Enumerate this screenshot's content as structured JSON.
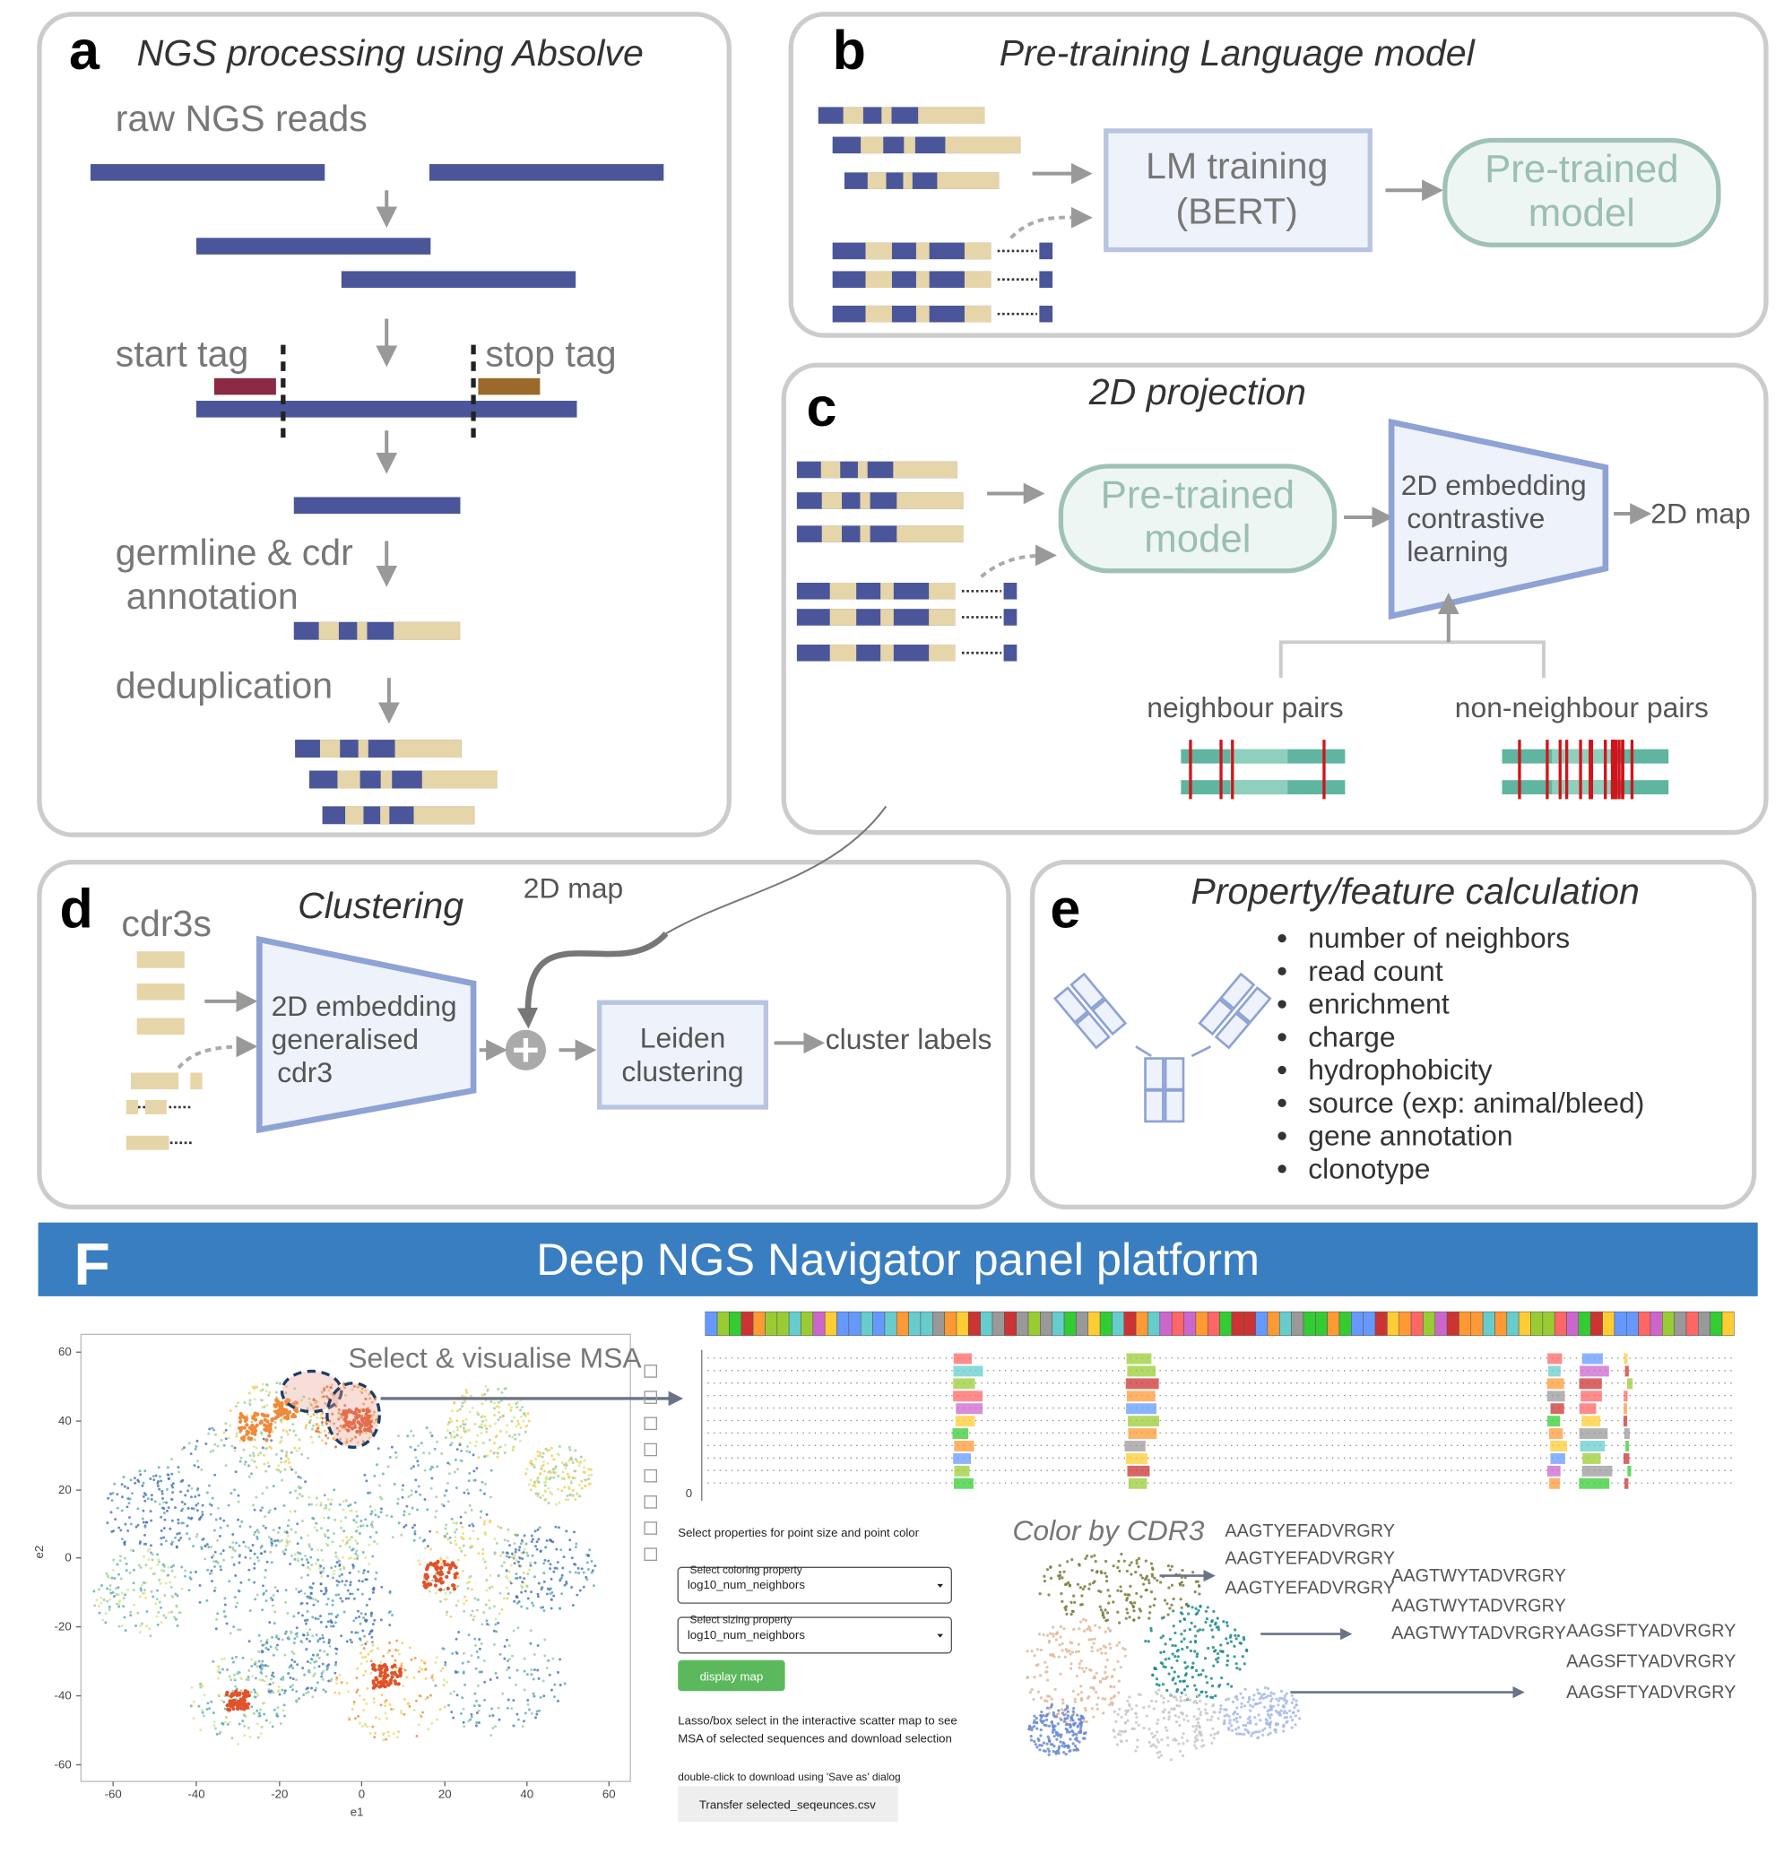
{
  "panel_a": {
    "letter": "a",
    "title": "NGS processing using Absolve",
    "raw_reads": "raw NGS reads",
    "start_tag": "start tag",
    "stop_tag": "stop tag",
    "annotation": [
      "germline & cdr",
      "annotation"
    ],
    "dedup": "deduplication"
  },
  "panel_b": {
    "letter": "b",
    "title": "Pre-training Language model",
    "box1": [
      "LM training",
      "(BERT)"
    ],
    "box2": [
      "Pre-trained",
      "model"
    ]
  },
  "panel_c": {
    "letter": "c",
    "title": "2D projection",
    "box1": [
      "Pre-trained",
      "model"
    ],
    "box2": [
      "2D embedding",
      "contrastive",
      "learning"
    ],
    "output": "2D map",
    "pairs": [
      "neighbour pairs",
      "non-neighbour pairs"
    ]
  },
  "panel_d": {
    "letter": "d",
    "title": "Clustering",
    "input": "cdr3s",
    "box1": [
      "2D embedding",
      "generalised",
      "cdr3"
    ],
    "map_label": "2D map",
    "box2": [
      "Leiden",
      "clustering"
    ],
    "output": "cluster labels"
  },
  "panel_e": {
    "letter": "e",
    "title": "Property/feature calculation",
    "items": [
      "number of neighbors",
      "read count",
      "enrichment",
      "charge",
      "hydrophobicity",
      "source (exp: animal/bleed)",
      "gene annotation",
      "clonotype"
    ]
  },
  "panel_f": {
    "letter": "F",
    "title": "Deep NGS Navigator panel platform",
    "scatter": {
      "annotation": "Select & visualise MSA",
      "xlabel": "e1",
      "ylabel": "e2",
      "xticks": [
        "-60",
        "-40",
        "-20",
        "0",
        "20",
        "40",
        "60"
      ],
      "yticks": [
        "60",
        "40",
        "20",
        "0",
        "-20",
        "-40",
        "-60"
      ]
    },
    "msa_zero": "0",
    "controls": {
      "heading": "Select properties for point size and point color",
      "coloring_label": "Select coloring property",
      "coloring_value": "log10_num_neighbors",
      "sizing_label": "Select sizing property",
      "sizing_value": "log10_num_neighbors",
      "button": "display map",
      "note": [
        "Lasso/box select in the interactive scatter map to see",
        "MSA of selected sequences and download selection"
      ],
      "download_hint": "double-click to download using 'Save as' dialog",
      "download_button": "Transfer selected_seqeunces.csv"
    },
    "cdr3": {
      "title": "Color by CDR3",
      "groups": [
        [
          "AAGTYEFADVRGRY",
          "AAGTYEFADVRGRY",
          "AAGTYEFADVRGRY"
        ],
        [
          "AAGTWYTADVRGRY",
          "AAGTWYTADVRGRY",
          "AAGTWYTADVRGRY"
        ],
        [
          "AAGSFTYADVRGRY",
          "AAGSFTYADVRGRY",
          "AAGSFTYADVRGRY"
        ]
      ]
    }
  }
}
